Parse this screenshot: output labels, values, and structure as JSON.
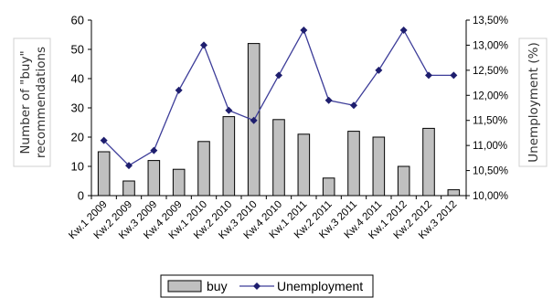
{
  "chart_data": {
    "type": "bar+line",
    "categories": [
      "Kw.1 2009",
      "Kw.2 2009",
      "Kw.3 2009",
      "Kw.4 2009",
      "Kw.1 2010",
      "Kw.2 2010",
      "Kw.3 2010",
      "Kw.4 2010",
      "Kw.1 2011",
      "Kw.2 2011",
      "Kw.3 2011",
      "Kw.4 2011",
      "Kw.1 2012",
      "Kw.2 2012",
      "Kw.3 2012"
    ],
    "series": [
      {
        "name": "buy",
        "type": "bar",
        "axis": "left",
        "color": "#c0c0c0",
        "values": [
          15,
          5,
          12,
          9,
          18.5,
          27,
          52,
          26,
          21,
          6,
          22,
          20,
          10,
          23,
          2
        ]
      },
      {
        "name": "Unemployment",
        "type": "line",
        "axis": "right",
        "color": "#3d3d99",
        "values": [
          11.1,
          10.6,
          10.9,
          12.1,
          13.0,
          11.7,
          11.5,
          12.4,
          13.3,
          11.9,
          11.8,
          12.5,
          13.3,
          12.4,
          12.4
        ]
      }
    ],
    "ylabel": "Number of \"buy\" recommendations",
    "ylabel_lines": [
      "Number of \"buy\"",
      "recommendations"
    ],
    "y2label": "Unemployment (%)",
    "ylim": [
      0,
      60
    ],
    "yticks": [
      "0",
      "10",
      "20",
      "30",
      "40",
      "50",
      "60"
    ],
    "y2lim": [
      10.0,
      13.5
    ],
    "y2ticks": [
      "10,00%",
      "10,50%",
      "11,00%",
      "11,50%",
      "12,00%",
      "12,50%",
      "13,00%",
      "13,50%"
    ],
    "grid": false,
    "legend_position": "bottom"
  },
  "legend": {
    "buy_label": "buy",
    "unemployment_label": "Unemployment"
  }
}
